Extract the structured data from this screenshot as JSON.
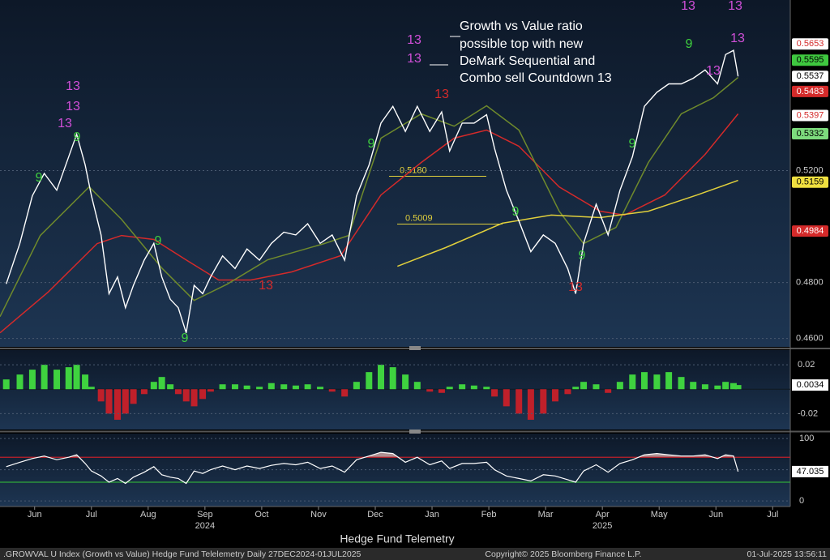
{
  "chart_data": {
    "type": "line",
    "annotation": [
      "Growth vs Value ratio",
      "possible top with new",
      "DeMark Sequential and",
      "Combo sell Countdown 13"
    ],
    "xlim": [
      -0.11,
      13.81
    ],
    "xticks": [
      {
        "value": 0.5,
        "label": "Jun"
      },
      {
        "value": 1.5,
        "label": "Jul"
      },
      {
        "value": 2.5,
        "label": "Aug"
      },
      {
        "value": 3.5,
        "label": "Sep"
      },
      {
        "value": 4.5,
        "label": "Oct"
      },
      {
        "value": 5.5,
        "label": "Nov"
      },
      {
        "value": 6.5,
        "label": "Dec"
      },
      {
        "value": 7.5,
        "label": "Jan"
      },
      {
        "value": 8.5,
        "label": "Feb"
      },
      {
        "value": 9.5,
        "label": "Mar"
      },
      {
        "value": 10.5,
        "label": "Apr"
      },
      {
        "value": 11.5,
        "label": "May"
      },
      {
        "value": 12.5,
        "label": "Jun"
      },
      {
        "value": 13.5,
        "label": "Jul"
      }
    ],
    "years": [
      {
        "value": 3.5,
        "label": "2024"
      },
      {
        "value": 10.5,
        "label": "2025"
      }
    ],
    "x": [
      0,
      0.24,
      0.46,
      0.67,
      0.89,
      1.1,
      1.24,
      1.39,
      1.5,
      1.67,
      1.81,
      1.96,
      2.1,
      2.24,
      2.43,
      2.6,
      2.74,
      2.89,
      3.03,
      3.17,
      3.31,
      3.46,
      3.6,
      3.81,
      4.03,
      4.24,
      4.46,
      4.67,
      4.89,
      5.1,
      5.31,
      5.53,
      5.74,
      5.96,
      6.17,
      6.39,
      6.6,
      6.81,
      7.03,
      7.24,
      7.46,
      7.67,
      7.81,
      8.03,
      8.24,
      8.46,
      8.6,
      8.81,
      9.03,
      9.24,
      9.46,
      9.67,
      9.89,
      10.03,
      10.17,
      10.39,
      10.6,
      10.81,
      11.03,
      11.24,
      11.46,
      11.67,
      11.89,
      12.1,
      12.31,
      12.53,
      12.67,
      12.81,
      12.89
    ],
    "price": {
      "color": "#ffffff",
      "values": [
        0.4795,
        0.494,
        0.511,
        0.519,
        0.513,
        0.525,
        0.533,
        0.522,
        0.511,
        0.497,
        0.476,
        0.482,
        0.471,
        0.479,
        0.488,
        0.494,
        0.482,
        0.474,
        0.471,
        0.462,
        0.479,
        0.476,
        0.482,
        0.4895,
        0.485,
        0.492,
        0.488,
        0.494,
        0.498,
        0.497,
        0.501,
        0.494,
        0.497,
        0.488,
        0.511,
        0.522,
        0.537,
        0.543,
        0.534,
        0.543,
        0.534,
        0.541,
        0.527,
        0.537,
        0.537,
        0.54,
        0.528,
        0.513,
        0.502,
        0.491,
        0.497,
        0.494,
        0.485,
        0.476,
        0.494,
        0.508,
        0.497,
        0.513,
        0.525,
        0.543,
        0.548,
        0.551,
        0.551,
        0.553,
        0.556,
        0.551,
        0.5615,
        0.563,
        0.5537
      ]
    },
    "moving_averages": [
      {
        "color": "#d42a2a",
        "x": [
          -0.11,
          0.74,
          1.6,
          2.03,
          2.6,
          3.17,
          3.74,
          4.31,
          5.03,
          5.89,
          6.6,
          7.31,
          7.89,
          8.46,
          9.03,
          9.74,
          10.46,
          10.89,
          11.6,
          12.31,
          12.89
        ],
        "values": [
          0.462,
          0.4766,
          0.4939,
          0.4968,
          0.4954,
          0.4881,
          0.4809,
          0.4809,
          0.4838,
          0.4896,
          0.5113,
          0.5229,
          0.5316,
          0.5345,
          0.5287,
          0.5142,
          0.5055,
          0.5041,
          0.5113,
          0.5258,
          0.5403
        ]
      },
      {
        "color": "#6f8a2c",
        "x": [
          -0.11,
          0.6,
          1.46,
          2.03,
          2.74,
          3.31,
          3.89,
          4.6,
          5.6,
          6.03,
          6.6,
          7.31,
          7.89,
          8.46,
          9.03,
          9.74,
          10.17,
          10.74,
          11.31,
          11.89,
          12.46,
          12.89
        ],
        "values": [
          0.4678,
          0.4968,
          0.5142,
          0.5026,
          0.4852,
          0.4736,
          0.4794,
          0.4881,
          0.4939,
          0.4968,
          0.5316,
          0.5403,
          0.5359,
          0.5432,
          0.5345,
          0.5055,
          0.4939,
          0.4997,
          0.5229,
          0.5403,
          0.5461,
          0.5533
        ]
      },
      {
        "color": "#e0cf3c",
        "x": [
          6.89,
          7.74,
          8.74,
          9.6,
          10.46,
          11.31,
          12.17,
          12.89
        ],
        "values": [
          0.4858,
          0.4925,
          0.5012,
          0.5041,
          0.5032,
          0.5055,
          0.5113,
          0.5165
        ]
      }
    ],
    "levels": [
      {
        "value": 0.518,
        "label": "0.5180",
        "color": "#e0cf3c"
      },
      {
        "value": 0.5009,
        "label": "0.5009",
        "color": "#e0cf3c"
      }
    ],
    "demark": [
      {
        "text": "13",
        "color": "#d04fd8"
      },
      {
        "text": "13",
        "color": "#d04fd8"
      },
      {
        "text": "13",
        "color": "#d04fd8"
      },
      {
        "text": "9",
        "color": "#3fd23f"
      },
      {
        "text": "9",
        "color": "#3fd23f"
      },
      {
        "text": "9",
        "color": "#3fd23f"
      },
      {
        "text": "9",
        "color": "#3fd23f"
      },
      {
        "text": "13",
        "color": "#d42a2a"
      },
      {
        "text": "9",
        "color": "#3fd23f"
      },
      {
        "text": "13",
        "color": "#d04fd8"
      },
      {
        "text": "13",
        "color": "#d04fd8"
      },
      {
        "text": "13",
        "color": "#d42a2a"
      },
      {
        "text": "9",
        "color": "#3fd23f"
      },
      {
        "text": "13",
        "color": "#d42a2a"
      },
      {
        "text": "9",
        "color": "#3fd23f"
      },
      {
        "text": "9",
        "color": "#3fd23f"
      },
      {
        "text": "13",
        "color": "#d04fd8"
      },
      {
        "text": "13",
        "color": "#d04fd8"
      },
      {
        "text": "13",
        "color": "#d04fd8"
      },
      {
        "text": "9",
        "color": "#3fd23f"
      },
      {
        "text": "13",
        "color": "#d04fd8"
      }
    ],
    "ylim": [
      0.457,
      0.581
    ],
    "yticks": [
      {
        "value": 0.46,
        "label": "0.4600"
      },
      {
        "value": 0.48,
        "label": "0.4800"
      },
      {
        "value": 0.52,
        "label": "0.5200"
      }
    ],
    "grid": true,
    "price_tags": [
      {
        "value": 0.5653,
        "label": "0.5653",
        "fill": "#ffffff",
        "text": "#d42a2a"
      },
      {
        "value": 0.5595,
        "label": "0.5595",
        "fill": "#3fc83f",
        "text": "#000000"
      },
      {
        "value": 0.5537,
        "label": "0.5537",
        "fill": "#ffffff",
        "text": "#000000"
      },
      {
        "value": 0.5483,
        "label": "0.5483",
        "fill": "#d42a2a",
        "text": "#ffffff"
      },
      {
        "value": 0.5397,
        "label": "0.5397",
        "fill": "#ffffff",
        "text": "#d42a2a"
      },
      {
        "value": 0.5332,
        "label": "0.5332",
        "fill": "#7ddc7d",
        "text": "#000000"
      },
      {
        "value": 0.5159,
        "label": "0.5159",
        "fill": "#f0e040",
        "text": "#000000"
      },
      {
        "value": 0.4984,
        "label": "0.4984",
        "fill": "#d42a2a",
        "text": "#ffffff"
      }
    ],
    "macd": {
      "up_color": "#3fd23f",
      "down_color": "#c0202a",
      "ylim": [
        -0.033,
        0.032
      ],
      "yticks": [
        0.02,
        -0.02
      ],
      "values": [
        0.008,
        0.012,
        0.016,
        0.02,
        0.016,
        0.018,
        0.02,
        0.012,
        0.002,
        -0.01,
        -0.02,
        -0.025,
        -0.02,
        -0.012,
        -0.004,
        0.006,
        0.01,
        0.004,
        -0.004,
        -0.01,
        -0.014,
        -0.008,
        -0.002,
        0.004,
        0.004,
        0.003,
        0.002,
        0.005,
        0.004,
        0.003,
        0.004,
        0.002,
        -0.002,
        -0.006,
        0.006,
        0.014,
        0.02,
        0.018,
        0.012,
        0.006,
        -0.002,
        -0.003,
        0.002,
        0.004,
        0.003,
        0.002,
        -0.006,
        -0.014,
        -0.02,
        -0.025,
        -0.02,
        -0.01,
        -0.004,
        0.002,
        0.006,
        0.004,
        -0.003,
        0.006,
        0.012,
        0.014,
        0.012,
        0.014,
        0.01,
        0.006,
        0.004,
        0.003,
        0.006,
        0.005,
        0.0034
      ],
      "tag": {
        "value": 0.0034,
        "label": "0.0034"
      }
    },
    "rsi": {
      "color": "#ffffff",
      "fill": "#c9a3a3",
      "ylim": [
        -9,
        108
      ],
      "yticks": [
        0,
        50,
        100
      ],
      "levels": [
        {
          "value": 70,
          "color": "#c0202a"
        },
        {
          "value": 30,
          "color": "#2fa83a"
        }
      ],
      "values": [
        55,
        62,
        68,
        72,
        66,
        70,
        74,
        60,
        48,
        40,
        30,
        36,
        28,
        38,
        46,
        55,
        42,
        38,
        36,
        28,
        48,
        44,
        50,
        56,
        50,
        56,
        52,
        57,
        60,
        58,
        62,
        52,
        56,
        46,
        66,
        72,
        78,
        76,
        62,
        70,
        58,
        64,
        52,
        60,
        60,
        62,
        50,
        40,
        36,
        32,
        42,
        40,
        34,
        30,
        48,
        58,
        46,
        60,
        66,
        74,
        76,
        74,
        72,
        72,
        74,
        68,
        74,
        72,
        47.035
      ],
      "tag": {
        "value": 47.035,
        "label": "47.035"
      }
    },
    "caption": "Hedge Fund Telemetry",
    "footer": {
      "left": ".GROWVAL U Index (Growth vs Value) Hedge Fund Telelemetry  Daily 27DEC2024-01JUL2025",
      "center": "Copyright© 2025 Bloomberg Finance L.P.",
      "right": "01-Jul-2025 13:56:11"
    }
  }
}
